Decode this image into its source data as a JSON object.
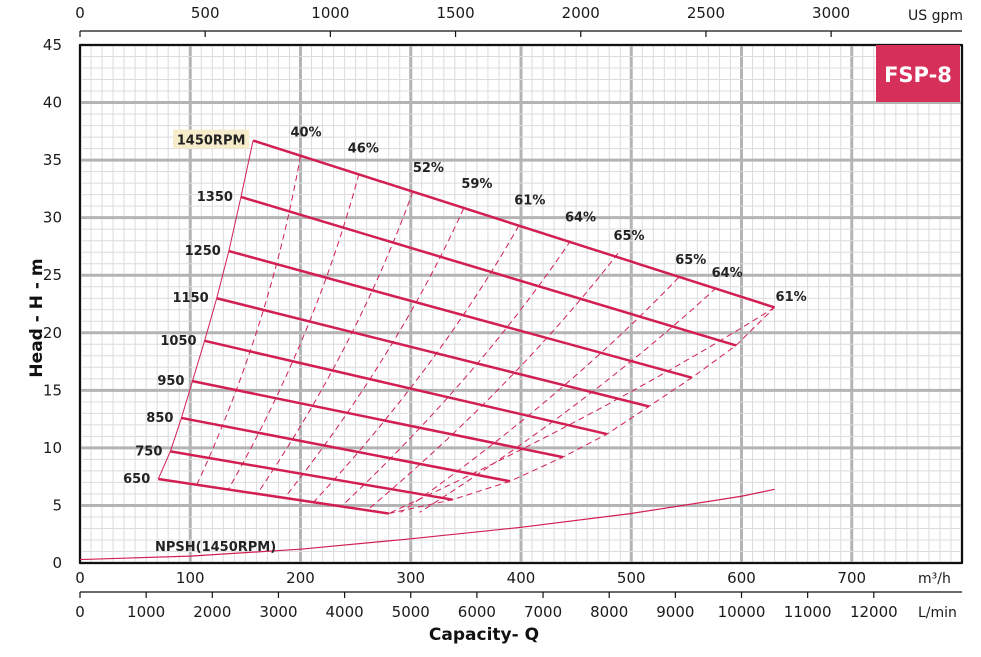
{
  "chart_data": {
    "type": "line",
    "badge": "FSP-8",
    "xlabel": "Capacity- Q",
    "ylabel": "Head - H - m",
    "xlim": [
      0,
      800
    ],
    "ylim": [
      0,
      45
    ],
    "x_unit_main": "m³/h",
    "x_unit_top": "US gpm",
    "x_unit_lmin": "L/min",
    "x_ticks_main": [
      "0",
      "100",
      "200",
      "300",
      "400",
      "500",
      "600",
      "700"
    ],
    "x_ticks_gpm": [
      "0",
      "500",
      "1000",
      "1500",
      "2000",
      "2500",
      "3000"
    ],
    "x_ticks_lmin": [
      "0",
      "1000",
      "2000",
      "3000",
      "4000",
      "5000",
      "6000",
      "7000",
      "8000",
      "9000",
      "10000",
      "11000",
      "12000"
    ],
    "y_ticks": [
      "0",
      "5",
      "10",
      "15",
      "20",
      "25",
      "30",
      "35",
      "40",
      "45"
    ],
    "speed_curves": [
      {
        "rpm": "1450RPM",
        "x": [
          157,
          630
        ],
        "y": [
          36.7,
          22.2
        ]
      },
      {
        "rpm": "1350",
        "x": [
          146,
          595
        ],
        "y": [
          31.8,
          18.9
        ]
      },
      {
        "rpm": "1250",
        "x": [
          135,
          555
        ],
        "y": [
          27.1,
          16.1
        ]
      },
      {
        "rpm": "1150",
        "x": [
          124,
          516
        ],
        "y": [
          23.0,
          13.6
        ]
      },
      {
        "rpm": "1050",
        "x": [
          113,
          478
        ],
        "y": [
          19.3,
          11.2
        ]
      },
      {
        "rpm": "950",
        "x": [
          102,
          438
        ],
        "y": [
          15.8,
          9.2
        ]
      },
      {
        "rpm": "850",
        "x": [
          92,
          390
        ],
        "y": [
          12.6,
          7.1
        ]
      },
      {
        "rpm": "750",
        "x": [
          82,
          338
        ],
        "y": [
          9.7,
          5.5
        ]
      },
      {
        "rpm": "650",
        "x": [
          71,
          280
        ],
        "y": [
          7.3,
          4.3
        ]
      }
    ],
    "efficiency_labels": [
      {
        "label": "40%",
        "x": 205,
        "y": 36.8
      },
      {
        "label": "46%",
        "x": 257,
        "y": 35.4
      },
      {
        "label": "52%",
        "x": 316,
        "y": 33.7
      },
      {
        "label": "59%",
        "x": 360,
        "y": 32.3
      },
      {
        "label": "61%",
        "x": 408,
        "y": 30.9
      },
      {
        "label": "64%",
        "x": 454,
        "y": 29.4
      },
      {
        "label": "65%",
        "x": 498,
        "y": 27.8
      },
      {
        "label": "65%",
        "x": 554,
        "y": 25.7
      },
      {
        "label": "64%",
        "x": 587,
        "y": 24.6
      },
      {
        "label": "61%",
        "x": 645,
        "y": 22.5
      }
    ],
    "efficiency_lines": [
      {
        "x": [
          200,
          106
        ],
        "y": [
          35.4,
          6.8
        ]
      },
      {
        "x": [
          253,
          134
        ],
        "y": [
          33.8,
          6.3
        ]
      },
      {
        "x": [
          302,
          160
        ],
        "y": [
          32.3,
          5.9
        ]
      },
      {
        "x": [
          348,
          185
        ],
        "y": [
          30.8,
          5.6
        ]
      },
      {
        "x": [
          398,
          212
        ],
        "y": [
          29.3,
          5.3
        ]
      },
      {
        "x": [
          445,
          238
        ],
        "y": [
          28.0,
          5.0
        ]
      },
      {
        "x": [
          488,
          262
        ],
        "y": [
          26.9,
          4.7
        ]
      },
      {
        "x": [
          543,
          291
        ],
        "y": [
          24.8,
          4.4
        ]
      },
      {
        "x": [
          577,
          308
        ],
        "y": [
          23.9,
          4.4
        ]
      },
      {
        "x": [
          630,
          280
        ],
        "y": [
          22.2,
          4.3
        ]
      }
    ],
    "npsh": {
      "label": "NPSH(1450RPM)",
      "x": [
        0,
        100,
        200,
        300,
        400,
        500,
        600,
        630
      ],
      "y": [
        0.3,
        0.6,
        1.2,
        2.1,
        3.1,
        4.3,
        5.8,
        6.4
      ]
    }
  }
}
